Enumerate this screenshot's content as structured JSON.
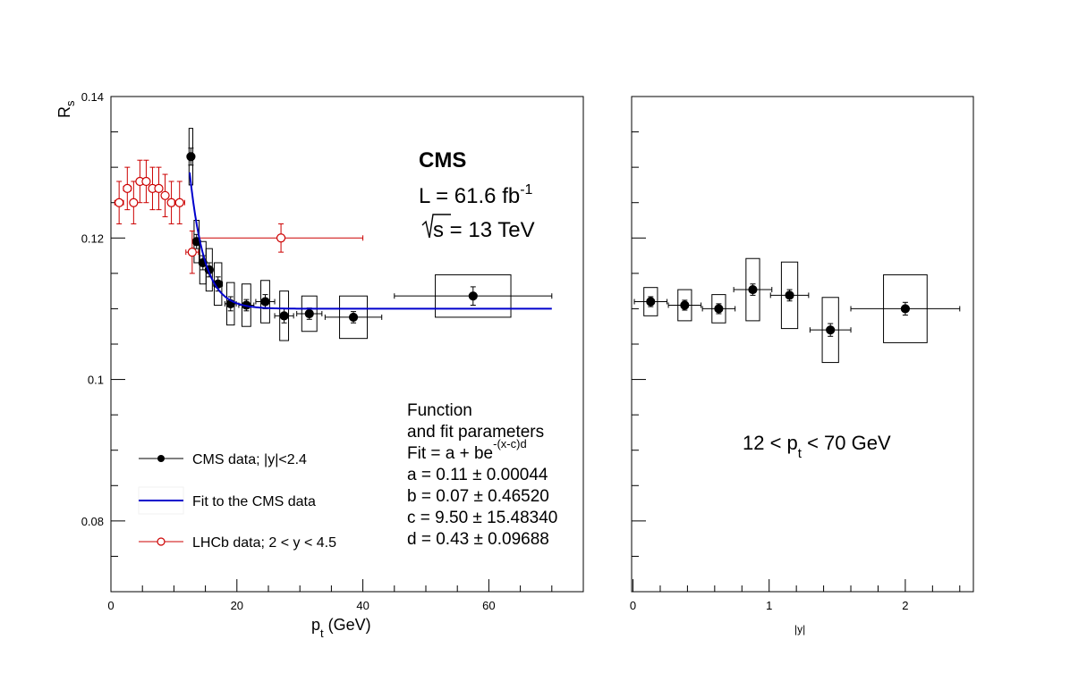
{
  "chart_data": [
    {
      "type": "scatter",
      "xlabel": "p",
      "xlabel_sub": "t",
      "xlabel_unit": "(GeV)",
      "ylabel": "R",
      "ylabel_sub": "s",
      "xlim": [
        0,
        75
      ],
      "ylim": [
        0.07,
        0.14
      ],
      "xticks": [
        "0",
        "20",
        "40",
        "60"
      ],
      "yticks": [
        "0.08",
        "0.1",
        "0.12",
        "0.14"
      ],
      "cms_label": {
        "experiment": "CMS",
        "lumi": "L = 61.6 fb",
        "lumi_sup": "-1",
        "energy_sqrt": "s",
        "energy_rest": " = 13 TeV"
      },
      "fit_text": {
        "line1": "Function",
        "line2": "and fit parameters",
        "line3": "Fit = a + be",
        "line3_sup": "-(x-c)d",
        "a": "a = 0.11 ± 0.00044",
        "b": "b = 0.07 ± 0.46520",
        "c": "c = 9.50 ± 15.48340",
        "d": "d = 0.43 ± 0.09688"
      },
      "legend": {
        "position": "bottom-left",
        "entries": [
          {
            "label": "CMS data; |y|<2.4",
            "color": "#000000",
            "marker": "filled-circle"
          },
          {
            "label": "Fit to the CMS data",
            "color": "#0000cc",
            "marker": "line"
          },
          {
            "label": "LHCb data; 2 < y < 4.5",
            "color": "#cc0000",
            "marker": "open-circle"
          }
        ]
      },
      "series": [
        {
          "name": "CMS data; |y|<2.4",
          "color": "#000000",
          "points": [
            {
              "x": 12.7,
              "y": 0.1315,
              "xerr": 0.3,
              "yerr": 0.0012,
              "sys_x": 0.3,
              "sys_y": 0.004
            },
            {
              "x": 13.6,
              "y": 0.1195,
              "xerr": 0.4,
              "yerr": 0.001,
              "sys_x": 0.4,
              "sys_y": 0.003
            },
            {
              "x": 14.6,
              "y": 0.1165,
              "xerr": 0.5,
              "yerr": 0.001,
              "sys_x": 0.5,
              "sys_y": 0.003
            },
            {
              "x": 15.6,
              "y": 0.1155,
              "xerr": 0.5,
              "yerr": 0.001,
              "sys_x": 0.5,
              "sys_y": 0.003
            },
            {
              "x": 17.0,
              "y": 0.1135,
              "xerr": 0.7,
              "yerr": 0.001,
              "sys_x": 0.6,
              "sys_y": 0.003
            },
            {
              "x": 19.0,
              "y": 0.1107,
              "xerr": 0.9,
              "yerr": 0.001,
              "sys_x": 0.6,
              "sys_y": 0.003
            },
            {
              "x": 21.5,
              "y": 0.1105,
              "xerr": 1.2,
              "yerr": 0.0008,
              "sys_x": 0.7,
              "sys_y": 0.003
            },
            {
              "x": 24.5,
              "y": 0.111,
              "xerr": 1.5,
              "yerr": 0.001,
              "sys_x": 0.7,
              "sys_y": 0.003
            },
            {
              "x": 27.5,
              "y": 0.109,
              "xerr": 1.5,
              "yerr": 0.001,
              "sys_x": 0.7,
              "sys_y": 0.0035
            },
            {
              "x": 31.5,
              "y": 0.1093,
              "xerr": 2.0,
              "yerr": 0.0008,
              "sys_x": 1.2,
              "sys_y": 0.0025
            },
            {
              "x": 38.5,
              "y": 0.1088,
              "xerr": 4.5,
              "yerr": 0.0008,
              "sys_x": 2.2,
              "sys_y": 0.003
            },
            {
              "x": 57.5,
              "y": 0.1118,
              "xerr": 12.5,
              "yerr": 0.0013,
              "sys_x": 6.0,
              "sys_y": 0.003
            }
          ]
        },
        {
          "name": "LHCb data; 2 < y < 4.5",
          "color": "#cc0000",
          "points": [
            {
              "x": 1.3,
              "y": 0.125,
              "xerr": 0.7,
              "yerr": 0.003
            },
            {
              "x": 2.6,
              "y": 0.127,
              "xerr": 0.6,
              "yerr": 0.003
            },
            {
              "x": 3.6,
              "y": 0.125,
              "xerr": 0.5,
              "yerr": 0.003
            },
            {
              "x": 4.6,
              "y": 0.128,
              "xerr": 0.5,
              "yerr": 0.003
            },
            {
              "x": 5.6,
              "y": 0.128,
              "xerr": 0.5,
              "yerr": 0.003
            },
            {
              "x": 6.6,
              "y": 0.127,
              "xerr": 0.5,
              "yerr": 0.003
            },
            {
              "x": 7.6,
              "y": 0.127,
              "xerr": 0.5,
              "yerr": 0.003
            },
            {
              "x": 8.6,
              "y": 0.126,
              "xerr": 0.5,
              "yerr": 0.003
            },
            {
              "x": 9.6,
              "y": 0.125,
              "xerr": 0.5,
              "yerr": 0.003
            },
            {
              "x": 10.9,
              "y": 0.125,
              "xerr": 0.8,
              "yerr": 0.003
            },
            {
              "x": 12.9,
              "y": 0.118,
              "xerr": 1.0,
              "yerr": 0.003
            },
            {
              "x": 27.0,
              "y": 0.12,
              "xerr": 13.0,
              "yerr": 0.002
            }
          ]
        },
        {
          "name": "Fit to the CMS data",
          "color": "#0000cc",
          "function": "a + b*exp(-(x-c)*d)",
          "params": {
            "a": 0.11,
            "b": 0.07,
            "c": 9.5,
            "d": 0.43
          },
          "x_range": [
            12.5,
            70
          ]
        }
      ]
    },
    {
      "type": "scatter",
      "xlabel": "|y|",
      "xlim": [
        -0.01,
        2.5
      ],
      "ylim": [
        0.07,
        0.14
      ],
      "xticks": [
        "0",
        "1",
        "2"
      ],
      "annotation": {
        "prefix": "12 < p",
        "sub": "t",
        "suffix": " < 70 GeV"
      },
      "series": [
        {
          "name": "CMS data",
          "color": "#000000",
          "points": [
            {
              "x": 0.13,
              "y": 0.111,
              "xerr": 0.12,
              "yerr": 0.0007,
              "sys_x": 0.05,
              "sys_y": 0.002
            },
            {
              "x": 0.38,
              "y": 0.1105,
              "xerr": 0.12,
              "yerr": 0.0007,
              "sys_x": 0.05,
              "sys_y": 0.0022
            },
            {
              "x": 0.63,
              "y": 0.11,
              "xerr": 0.12,
              "yerr": 0.0007,
              "sys_x": 0.05,
              "sys_y": 0.002
            },
            {
              "x": 0.88,
              "y": 0.1127,
              "xerr": 0.14,
              "yerr": 0.0008,
              "sys_x": 0.05,
              "sys_y": 0.0044
            },
            {
              "x": 1.15,
              "y": 0.1119,
              "xerr": 0.14,
              "yerr": 0.0008,
              "sys_x": 0.06,
              "sys_y": 0.0047
            },
            {
              "x": 1.45,
              "y": 0.107,
              "xerr": 0.15,
              "yerr": 0.0009,
              "sys_x": 0.06,
              "sys_y": 0.0046
            },
            {
              "x": 2.0,
              "y": 0.11,
              "xerr": 0.4,
              "yerr": 0.0009,
              "sys_x": 0.16,
              "sys_y": 0.0048
            }
          ]
        }
      ]
    }
  ]
}
